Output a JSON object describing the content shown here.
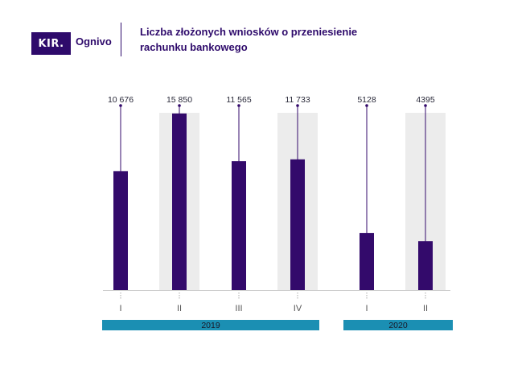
{
  "brand": {
    "logo_text": "KIR.",
    "name": "Ognivo"
  },
  "title_lines": [
    "Liczba złożonych wniosków o przeniesienie",
    "rachunku bankowego"
  ],
  "colors": {
    "bar": "#330a6b",
    "year_band": "#1b8fb3",
    "highlight": "#ececec",
    "brand": "#2e0a6b"
  },
  "chart_data": {
    "type": "bar",
    "title": "Liczba złożonych wniosków o przeniesienie rachunku bankowego",
    "categories": [
      "I",
      "II",
      "III",
      "IV",
      "I",
      "II"
    ],
    "groups": [
      {
        "label": "2019",
        "categories": [
          "I",
          "II",
          "III",
          "IV"
        ]
      },
      {
        "label": "2020",
        "categories": [
          "I",
          "II"
        ]
      }
    ],
    "series": [
      {
        "values": [
          10676,
          15850,
          11565,
          11733,
          5128,
          4395
        ]
      }
    ],
    "value_labels": [
      "10 676",
      "15 850",
      "11 565",
      "11 733",
      "5128",
      "4395"
    ],
    "highlighted_categories": [
      1,
      3,
      5
    ],
    "ylim": [
      0,
      17500
    ],
    "grid": false
  }
}
